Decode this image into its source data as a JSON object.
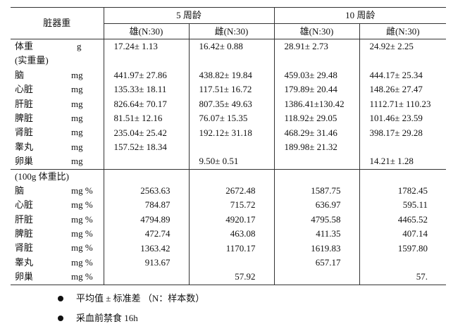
{
  "table": {
    "corner": "脏器重",
    "groups": [
      "5 周龄",
      "10 周龄"
    ],
    "subheaders": [
      "雄(N:30)",
      "雌(N:30)",
      "雄(N:30)",
      "雌(N:30)"
    ],
    "section1": {
      "body_weight": {
        "name": "体重",
        "unit": "g",
        "values": [
          "17.24± 1.13",
          "16.42± 0.88",
          "28.91± 2.73",
          "24.92± 2.25"
        ]
      },
      "label": "(实重量)",
      "rows": [
        {
          "name": "脑",
          "unit": "mg",
          "values": [
            "441.97± 27.86",
            "438.82± 19.84",
            "459.03± 29.48",
            "444.17± 25.34"
          ]
        },
        {
          "name": "心脏",
          "unit": "mg",
          "values": [
            "135.33± 18.11",
            "117.51± 16.72",
            "179.89± 20.44",
            "148.26± 27.47"
          ]
        },
        {
          "name": "肝脏",
          "unit": "mg",
          "values": [
            "826.64± 70.17",
            "807.35± 49.63",
            "1386.41±130.42",
            "1112.71± 110.23"
          ]
        },
        {
          "name": "脾脏",
          "unit": "mg",
          "values": [
            "81.51± 12.16",
            "76.07± 15.35",
            "118.92± 29.05",
            "101.46± 23.59"
          ]
        },
        {
          "name": "肾脏",
          "unit": "mg",
          "values": [
            "235.04± 25.42",
            "192.12± 31.18",
            "468.29± 31.46",
            "398.17± 29.28"
          ]
        },
        {
          "name": "睾丸",
          "unit": "mg",
          "values": [
            "157.52± 18.34",
            "",
            "189.98± 21.32",
            ""
          ]
        },
        {
          "name": "卵巢",
          "unit": "mg",
          "values": [
            "",
            "9.50± 0.51",
            "",
            "14.21±    1.28"
          ]
        }
      ]
    },
    "section2": {
      "label": "(100g 体重比)",
      "rows": [
        {
          "name": "脑",
          "unit": "mg %",
          "values": [
            "2563.63",
            "2672.48",
            "1587.75",
            "1782.45"
          ]
        },
        {
          "name": "心脏",
          "unit": "mg %",
          "values": [
            "784.87",
            "715.72",
            "636.97",
            "595.11"
          ]
        },
        {
          "name": "肝脏",
          "unit": "mg %",
          "values": [
            "4794.89",
            "4920.17",
            "4795.58",
            "4465.52"
          ]
        },
        {
          "name": "脾脏",
          "unit": "mg %",
          "values": [
            "472.74",
            "463.08",
            "411.35",
            "407.14"
          ]
        },
        {
          "name": "肾脏",
          "unit": "mg %",
          "values": [
            "1363.42",
            "1170.17",
            "1619.83",
            "1597.80"
          ]
        },
        {
          "name": "睾丸",
          "unit": "mg %",
          "values": [
            "913.67",
            "",
            "657.17",
            ""
          ]
        },
        {
          "name": "卵巢",
          "unit": "mg %",
          "values": [
            "",
            "57.92",
            "",
            "57."
          ]
        }
      ]
    }
  },
  "notes": [
    "平均值 ± 标准差  （N：样本数）",
    "采血前禁食 16h"
  ]
}
